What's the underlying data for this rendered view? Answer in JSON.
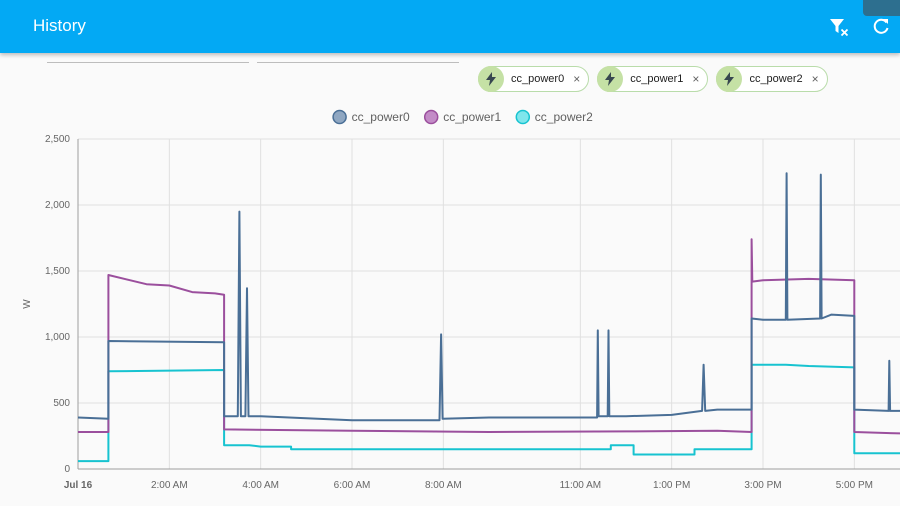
{
  "header": {
    "title": "History",
    "background": "#03a9f4",
    "icons": [
      "filter-remove-icon",
      "refresh-icon"
    ]
  },
  "chips": [
    {
      "label": "cc_power0",
      "icon": "lightning-icon",
      "remove": "×"
    },
    {
      "label": "cc_power1",
      "icon": "lightning-icon",
      "remove": "×"
    },
    {
      "label": "cc_power2",
      "icon": "lightning-icon",
      "remove": "×"
    }
  ],
  "chart_data": {
    "type": "line",
    "title": "",
    "xlabel": "",
    "ylabel": "W",
    "legend_position": "top",
    "grid": true,
    "ylim": [
      0,
      2500
    ],
    "yticks": [
      0,
      500,
      1000,
      1500,
      2000,
      2500
    ],
    "ytick_labels": [
      "0",
      "500",
      "1,000",
      "1,500",
      "2,000",
      "2,500"
    ],
    "xlim": [
      "00:00",
      "18:00"
    ],
    "xticks": [
      "00:00",
      "02:00",
      "04:00",
      "06:00",
      "08:00",
      "11:00",
      "13:00",
      "15:00",
      "17:00"
    ],
    "xtick_labels": [
      "Jul 16",
      "2:00 AM",
      "4:00 AM",
      "6:00 AM",
      "8:00 AM",
      "11:00 AM",
      "1:00 PM",
      "3:00 PM",
      "5:00 PM"
    ],
    "series": [
      {
        "name": "cc_power0",
        "color": "#4a6f96",
        "fill": "#8fa7c2",
        "x": [
          "00:00",
          "00:40",
          "00:40",
          "03:12",
          "03:12",
          "03:30",
          "03:32",
          "03:34",
          "03:40",
          "03:42",
          "03:44",
          "04:00",
          "06:00",
          "07:55",
          "07:57",
          "07:59",
          "09:00",
          "11:22",
          "11:23",
          "11:24",
          "11:36",
          "11:37",
          "11:38",
          "12:00",
          "13:00",
          "13:40",
          "13:42",
          "13:44",
          "14:00",
          "14:45",
          "14:45",
          "15:00",
          "15:30",
          "15:31",
          "15:32",
          "16:15",
          "16:16",
          "16:17",
          "16:30",
          "17:00",
          "17:00",
          "17:45",
          "17:46",
          "17:47",
          "18:00"
        ],
        "y": [
          390,
          380,
          970,
          960,
          400,
          400,
          1950,
          400,
          400,
          1370,
          400,
          400,
          370,
          370,
          1020,
          380,
          390,
          390,
          1050,
          400,
          400,
          1050,
          400,
          400,
          410,
          440,
          790,
          440,
          450,
          450,
          1140,
          1130,
          1130,
          2240,
          1130,
          1140,
          2230,
          1140,
          1170,
          1160,
          450,
          440,
          820,
          440,
          440
        ]
      },
      {
        "name": "cc_power1",
        "color": "#9b4f9d",
        "fill": "#c38cc7",
        "x": [
          "00:00",
          "00:40",
          "00:40",
          "01:30",
          "02:00",
          "02:30",
          "03:00",
          "03:12",
          "03:12",
          "06:00",
          "09:00",
          "12:00",
          "14:00",
          "14:45",
          "14:45",
          "14:46",
          "15:00",
          "16:00",
          "17:00",
          "17:00",
          "18:00"
        ],
        "y": [
          280,
          280,
          1470,
          1400,
          1390,
          1340,
          1330,
          1320,
          300,
          290,
          280,
          285,
          290,
          280,
          1740,
          1420,
          1430,
          1440,
          1430,
          280,
          270
        ]
      },
      {
        "name": "cc_power2",
        "color": "#17c3d0",
        "fill": "#7fe6ec",
        "x": [
          "00:00",
          "00:40",
          "00:40",
          "03:12",
          "03:12",
          "03:45",
          "04:00",
          "04:40",
          "04:40",
          "08:00",
          "11:40",
          "11:40",
          "12:10",
          "12:10",
          "13:30",
          "13:30",
          "14:45",
          "14:45",
          "15:30",
          "16:00",
          "17:00",
          "17:00",
          "18:00"
        ],
        "y": [
          60,
          60,
          740,
          750,
          180,
          180,
          170,
          170,
          150,
          150,
          150,
          180,
          180,
          110,
          110,
          150,
          150,
          790,
          790,
          780,
          770,
          120,
          120
        ]
      }
    ]
  }
}
